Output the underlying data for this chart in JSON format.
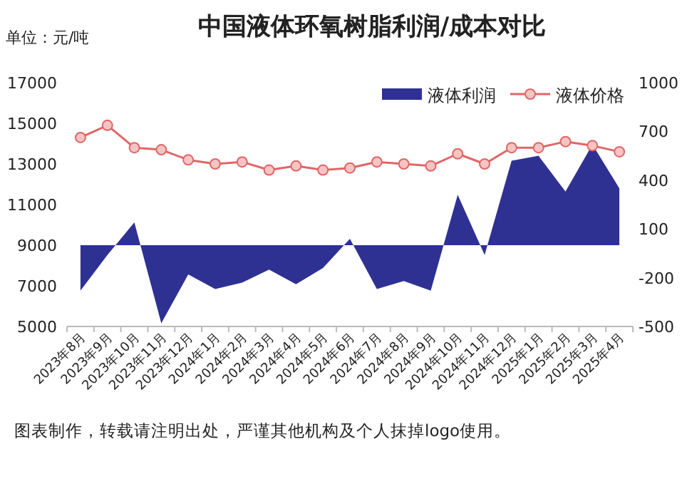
{
  "chart_data": {
    "type": "line",
    "title": "中国液体环氧树脂利润/成本对比",
    "ylabel": "单位：元/吨",
    "categories": [
      "2023年8月",
      "2023年9月",
      "2023年10月",
      "2023年11月",
      "2023年12月",
      "2024年1月",
      "2024年2月",
      "2024年3月",
      "2024年4月",
      "2024年5月",
      "2024年6月",
      "2024年7月",
      "2024年8月",
      "2024年9月",
      "2024年10月",
      "2024年11月",
      "2024年12月",
      "2025年1月",
      "2025年2月",
      "2025年3月",
      "2025年4月"
    ],
    "series": [
      {
        "name": "液体利润",
        "type": "area",
        "axis": "y2",
        "color": "#2e3192",
        "values": [
          -280,
          -60,
          140,
          -480,
          -180,
          -270,
          -230,
          -150,
          -240,
          -140,
          40,
          -270,
          -220,
          -280,
          310,
          -60,
          520,
          550,
          330,
          620,
          350
        ]
      },
      {
        "name": "液体价格",
        "color": "#e06666",
        "marker": "circle",
        "values": [
          14300,
          14900,
          13800,
          13700,
          13200,
          13000,
          13100,
          12700,
          12900,
          12700,
          12800,
          13100,
          13000,
          12900,
          13500,
          13000,
          13800,
          13800,
          14100,
          13900,
          13600
        ]
      }
    ],
    "ylim": [
      5000,
      17000
    ],
    "yticks": [
      5000,
      7000,
      9000,
      11000,
      13000,
      15000,
      17000
    ],
    "y2lim": [
      -500,
      1000
    ],
    "y2ticks": [
      -500,
      -200,
      100,
      400,
      700,
      1000
    ],
    "grid": false,
    "legend": "top right",
    "annotations": [
      "图表制作，转载请注明出处，严谨其他机构及个人抹掉logo使用。"
    ]
  }
}
